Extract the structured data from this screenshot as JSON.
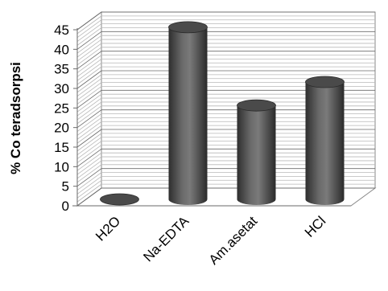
{
  "chart_data": {
    "type": "bar",
    "style": "3d-cylinder",
    "categories": [
      "H2O",
      "Na-EDTA",
      "Am.asetat",
      "HCl"
    ],
    "values": [
      0,
      44,
      24,
      30
    ],
    "ylabel": "% Co teradsorpsi",
    "ylim": [
      0,
      45
    ],
    "yticks": [
      0,
      5,
      10,
      15,
      20,
      25,
      30,
      35,
      40,
      45
    ],
    "grid": true,
    "legend": "none",
    "bar_color": "#4a4a4a"
  }
}
